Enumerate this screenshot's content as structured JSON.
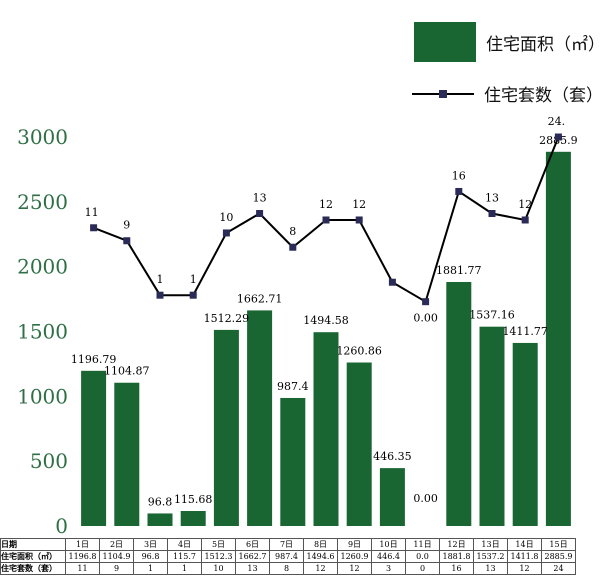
{
  "colors": {
    "bar": "#1a6632",
    "line": "#000000",
    "marker": "#2b2b57",
    "axis_text": "#2f6f45"
  },
  "legend": {
    "bar_label": "住宅面积（㎡）",
    "line_label": "住宅套数（套）"
  },
  "chart_data": {
    "type": "bar",
    "categories": [
      "1日",
      "2日",
      "3日",
      "4日",
      "5日",
      "6日",
      "7日",
      "8日",
      "9日",
      "10日",
      "11日",
      "12日",
      "13日",
      "14日",
      "15日"
    ],
    "series": [
      {
        "name": "住宅面积（㎡）",
        "type": "bar",
        "values": [
          1196.79,
          1104.87,
          96.8,
          115.68,
          1512.29,
          1662.71,
          987.4,
          1494.58,
          1260.86,
          446.35,
          0,
          1881.77,
          1537.16,
          1411.77,
          2885.9
        ],
        "labels": [
          "1196.79",
          "1104.87",
          "96.8",
          "115.68",
          "1512.29",
          "1662.71",
          "987.4",
          "1494.58",
          "1260.86",
          "446.35",
          "0.00",
          "1881.77",
          "1537.16",
          "1411.77",
          "2885.9"
        ]
      },
      {
        "name": "住宅套数（套）",
        "type": "line",
        "values": [
          11,
          9,
          1,
          1,
          10,
          13,
          8,
          12,
          12,
          3,
          0,
          16,
          13,
          12,
          24
        ],
        "labels": [
          "11",
          "9",
          "1",
          "1",
          "10",
          "13",
          "8",
          "12",
          "12",
          "",
          "0.00",
          "16",
          "13",
          "12",
          "24."
        ]
      }
    ],
    "y_left": {
      "min": 0,
      "max": 3000,
      "ticks": [
        0,
        500,
        1000,
        1500,
        2000,
        2500,
        3000
      ]
    },
    "line_display": {
      "1": 2300,
      "2": 2200,
      "3": 1780,
      "4": 1780,
      "5": 2260,
      "6": 2410,
      "7": 2150,
      "8": 2360,
      "9": 2360,
      "10": 1880,
      "11": 1730,
      "12": 2580,
      "13": 2410,
      "14": 2360,
      "15": 3000
    }
  },
  "table": {
    "rows": [
      {
        "head": "日期",
        "cells": [
          "1日",
          "2日",
          "3日",
          "4日",
          "5日",
          "6日",
          "7日",
          "8日",
          "9日",
          "10日",
          "11日",
          "12日",
          "13日",
          "14日",
          "15日"
        ]
      },
      {
        "head": "住宅面积（㎡）",
        "cells": [
          "1196.8",
          "1104.9",
          "96.8",
          "115.7",
          "1512.3",
          "1662.7",
          "987.4",
          "1494.6",
          "1260.9",
          "446.4",
          "0.0",
          "1881.8",
          "1537.2",
          "1411.8",
          "2885.9"
        ]
      },
      {
        "head": "住宅套数（套）",
        "cells": [
          "11",
          "9",
          "1",
          "1",
          "10",
          "13",
          "8",
          "12",
          "12",
          "3",
          "0",
          "16",
          "13",
          "12",
          "24"
        ]
      }
    ]
  }
}
